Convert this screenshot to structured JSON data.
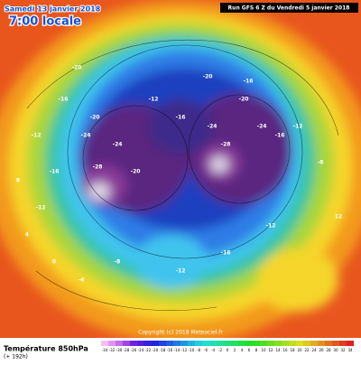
{
  "header": {
    "valid_time": "Samedi 13 janvier 2018",
    "local_time": "7:00 locale",
    "run": "Run GFS 6 Z du Vendredi 5 janvier 2018"
  },
  "map": {
    "contour_labels": [
      -20,
      -16,
      -12,
      -20,
      -24,
      -28,
      -24,
      -20,
      -16,
      -12,
      -20,
      -16,
      -24,
      -28,
      -20,
      -24,
      -16,
      -12,
      -8,
      -12,
      -16,
      -12,
      -8,
      -4,
      0,
      4,
      8,
      12,
      -12,
      -16
    ],
    "copyright": "Copyright (c) 2018 Meteociel.fr"
  },
  "legend": {
    "title": "Température 850hPa",
    "lead": "(+ 192h)",
    "labels": [
      -34,
      -32,
      -30,
      -28,
      -26,
      -24,
      -22,
      -20,
      -18,
      -16,
      -14,
      -12,
      -10,
      -8,
      -6,
      -4,
      -2,
      0,
      2,
      4,
      6,
      8,
      10,
      12,
      14,
      16,
      18,
      20,
      22,
      24,
      26,
      28,
      30,
      32,
      34
    ]
  }
}
